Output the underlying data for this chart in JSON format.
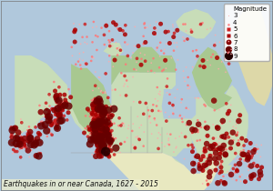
{
  "title": "Earthquakes in or near Canada, 1627 - 2015",
  "legend_title": "Magnitude",
  "legend_entries": [
    {
      "mag": 3,
      "size": 1.5,
      "color": "#ffaaaa",
      "label": "3"
    },
    {
      "mag": 4,
      "size": 3.5,
      "color": "#ff7777",
      "label": "4"
    },
    {
      "mag": 5,
      "size": 7,
      "color": "#cc2222",
      "label": "5"
    },
    {
      "mag": 6,
      "size": 13,
      "color": "#aa0000",
      "label": "6"
    },
    {
      "mag": 7,
      "size": 22,
      "color": "#880000",
      "label": "7"
    },
    {
      "mag": 8,
      "size": 35,
      "color": "#660000",
      "label": "8"
    },
    {
      "mag": 9,
      "size": 55,
      "color": "#220000",
      "label": "9"
    }
  ],
  "xlim": [
    -175,
    -40
  ],
  "ylim": [
    40,
    85
  ],
  "map_bg_ocean": "#b0c8dc",
  "map_bg_green": "#a8c890",
  "map_bg_lightgreen": "#c8ddb8",
  "map_bg_beige": "#e8e8c0",
  "map_bg_sand": "#ddd8a8",
  "map_bg_grey": "#d0d0c0",
  "border_color": "#999999",
  "border_lw": 0.3,
  "figsize": [
    3.0,
    2.1
  ],
  "dpi": 100,
  "title_fontsize": 5.5,
  "legend_fontsize": 5.0,
  "title_color": "#111111"
}
